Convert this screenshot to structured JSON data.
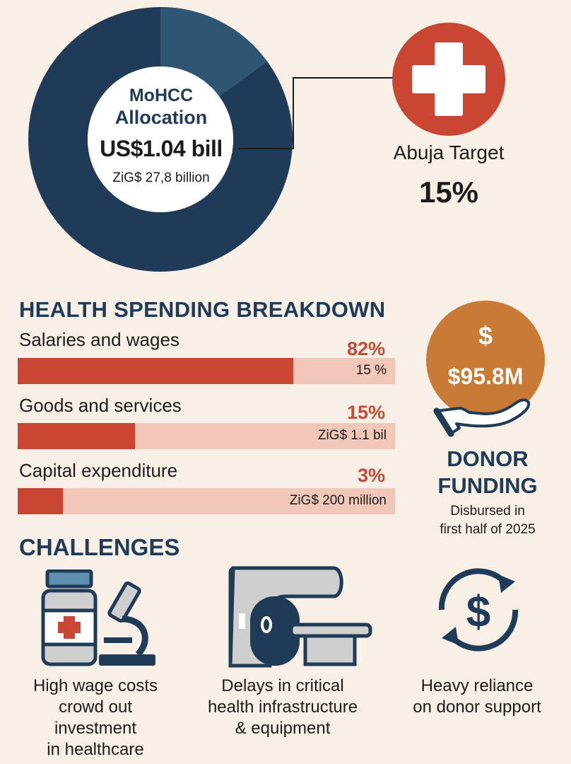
{
  "allocation": {
    "line1": "MoHCC",
    "line2": "Allocation",
    "amount": "US$1.04 bill",
    "zig": "ZiG$ 27,8 billion",
    "share": 0.15
  },
  "abuja": {
    "label": "Abuja Target",
    "value": "15%"
  },
  "breakdown": {
    "title": "HEALTH SPENDING BREAKDOWN",
    "rows": [
      {
        "label": "Salaries and wages",
        "pct": "82%",
        "note": "15 %",
        "fraction": 0.73
      },
      {
        "label": "Goods and services",
        "pct": "15%",
        "note": "ZiG$ 1.1 bil",
        "fraction": 0.31
      },
      {
        "label": "Capital expenditure",
        "pct": "3%",
        "note": "ZiG$ 200 million",
        "fraction": 0.12
      }
    ]
  },
  "donor": {
    "symbol": "$",
    "amount": "$95.8M",
    "title_line1": "DONOR",
    "title_line2": "FUNDING",
    "sub_line1": "Disbursed in",
    "sub_line2": "first half of 2025"
  },
  "challenges": {
    "title": "CHALLENGES",
    "items": [
      {
        "icon": "medicine-microscope-icon",
        "lines": [
          "High wage costs",
          "crowd out",
          "investment",
          "in healthcare"
        ]
      },
      {
        "icon": "medical-equipment-icon",
        "lines": [
          "Delays in critical",
          "health infrastructure",
          "& equipment"
        ]
      },
      {
        "icon": "donor-cycle-icon",
        "lines": [
          "Heavy reliance",
          "on donor support"
        ]
      }
    ]
  },
  "colors": {
    "navy": "#1f3b57",
    "steel": "#2f5573",
    "red": "#c84632",
    "orange": "#c97a34",
    "bar_bg": "#f0c7b8",
    "background": "#f8efe6"
  }
}
